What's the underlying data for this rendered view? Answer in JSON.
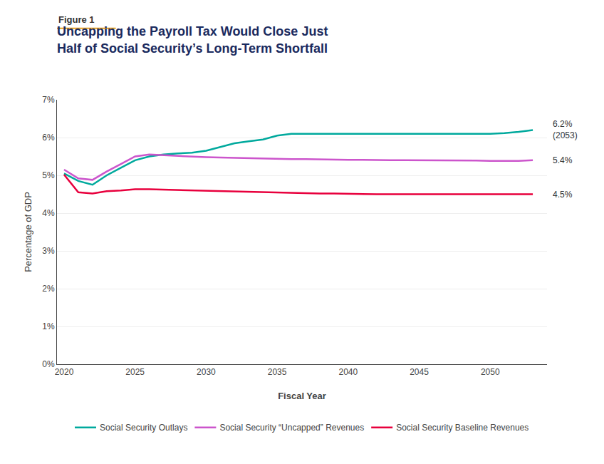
{
  "chart_data": {
    "type": "line",
    "title": "Uncapping the Payroll Tax Would Close Just\nHalf of Social Security’s Long-Term Shortfall",
    "x_label": "Fiscal Year",
    "y_label": "Percentage of GDP",
    "x": [
      2020,
      2021,
      2022,
      2023,
      2024,
      2025,
      2026,
      2027,
      2028,
      2029,
      2030,
      2031,
      2032,
      2033,
      2034,
      2035,
      2036,
      2037,
      2038,
      2039,
      2040,
      2041,
      2042,
      2043,
      2044,
      2045,
      2046,
      2047,
      2048,
      2049,
      2050,
      2051,
      2052,
      2053
    ],
    "series": [
      {
        "name": "Social Security Outlays",
        "color": "#00a99d",
        "values": [
          5.05,
          4.85,
          4.75,
          5.0,
          5.2,
          5.4,
          5.5,
          5.55,
          5.58,
          5.6,
          5.65,
          5.75,
          5.85,
          5.9,
          5.95,
          6.05,
          6.1,
          6.1,
          6.1,
          6.1,
          6.1,
          6.1,
          6.1,
          6.1,
          6.1,
          6.1,
          6.1,
          6.1,
          6.1,
          6.1,
          6.1,
          6.12,
          6.15,
          6.2
        ]
      },
      {
        "name": "Social Security “Uncapped” Revenues",
        "color": "#cc55cc",
        "values": [
          5.15,
          4.92,
          4.88,
          5.1,
          5.3,
          5.5,
          5.55,
          5.53,
          5.52,
          5.5,
          5.48,
          5.47,
          5.46,
          5.45,
          5.44,
          5.44,
          5.43,
          5.43,
          5.42,
          5.42,
          5.41,
          5.41,
          5.4,
          5.4,
          5.4,
          5.4,
          5.39,
          5.39,
          5.39,
          5.39,
          5.38,
          5.38,
          5.38,
          5.4
        ]
      },
      {
        "name": "Social Security Baseline Revenues",
        "color": "#e8003d",
        "values": [
          5.02,
          4.55,
          4.52,
          4.58,
          4.6,
          4.63,
          4.63,
          4.62,
          4.61,
          4.6,
          4.59,
          4.58,
          4.57,
          4.56,
          4.55,
          4.55,
          4.54,
          4.53,
          4.52,
          4.52,
          4.51,
          4.5,
          4.5,
          4.5,
          4.5,
          4.5,
          4.5,
          4.5,
          4.5,
          4.5,
          4.49,
          4.49,
          4.49,
          4.5
        ]
      }
    ],
    "xlim": [
      2019.5,
      2054
    ],
    "xticks": [
      2020,
      2025,
      2030,
      2035,
      2040,
      2045,
      2050
    ],
    "ylim": [
      0,
      7
    ],
    "yticks": [
      {
        "value": 0,
        "label": "0%"
      },
      {
        "value": 1,
        "label": "1%"
      },
      {
        "value": 2,
        "label": "2%"
      },
      {
        "value": 3,
        "label": "3%"
      },
      {
        "value": 4,
        "label": "4%"
      },
      {
        "value": 5,
        "label": "5%"
      },
      {
        "value": 6,
        "label": "6%"
      },
      {
        "value": 7,
        "label": "7%"
      }
    ],
    "grid": "y",
    "legend": "bottom",
    "annotations": [
      {
        "text": "Figure 1"
      },
      {
        "text": "6.2%\n(2053)",
        "x": 2053,
        "y": 6.2
      },
      {
        "text": "5.4%",
        "x": 2053,
        "y": 5.4
      },
      {
        "text": "4.5%",
        "x": 2053,
        "y": 4.5
      }
    ]
  }
}
